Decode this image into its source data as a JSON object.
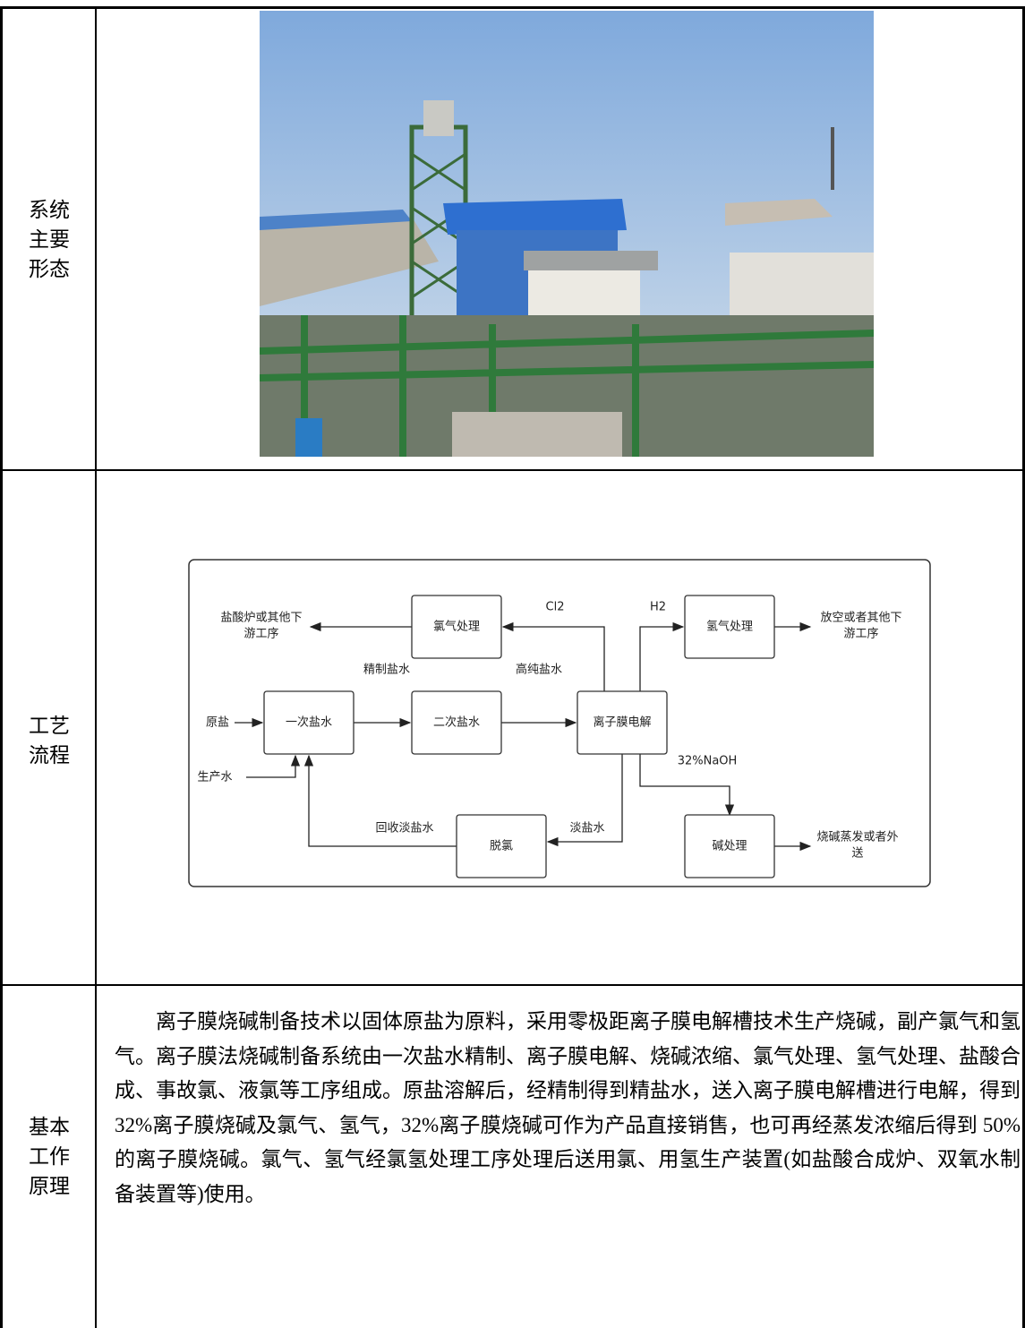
{
  "table": {
    "rows": [
      {
        "label": [
          "系统",
          "主要",
          "形态"
        ]
      },
      {
        "label": [
          "工艺",
          "流程"
        ],
        "diagram": {
          "nodes": [
            {
              "label": "氯气处理"
            },
            {
              "label": "氢气处理"
            },
            {
              "label": "一次盐水"
            },
            {
              "label": "二次盐水"
            },
            {
              "label": "离子膜电解"
            },
            {
              "label": "脱氯"
            },
            {
              "label": "碱处理"
            }
          ],
          "texts": [
            [
              "盐酸炉或其他下",
              "游工序"
            ],
            [
              "放空或者其他下",
              "游工序"
            ],
            [
              "原盐"
            ],
            [
              "生产水"
            ],
            [
              "精制盐水"
            ],
            [
              "高纯盐水"
            ],
            [
              "Cl2"
            ],
            [
              "H2"
            ],
            [
              "32%NaOH"
            ],
            [
              "回收淡盐水"
            ],
            [
              "淡盐水"
            ],
            [
              "烧碱蒸发或者外",
              "送"
            ]
          ]
        }
      },
      {
        "label": [
          "基本",
          "工作",
          "原理"
        ],
        "text": "离子膜烧碱制备技术以固体原盐为原料，采用零极距离子膜电解槽技术生产烧碱，副产氯气和氢气。离子膜法烧碱制备系统由一次盐水精制、离子膜电解、烧碱浓缩、氯气处理、氢气处理、盐酸合成、事故氯、液氯等工序组成。原盐溶解后，经精制得到精盐水，送入离子膜电解槽进行电解，得到 32%离子膜烧碱及氯气、氢气，32%离子膜烧碱可作为产品直接销售，也可再经蒸发浓缩后得到 50%的离子膜烧碱。氯气、氢气经氯氢处理工序处理后送用氯、用氢生产装置(如盐酸合成炉、双氧水制备装置等)使用。"
      }
    ]
  }
}
